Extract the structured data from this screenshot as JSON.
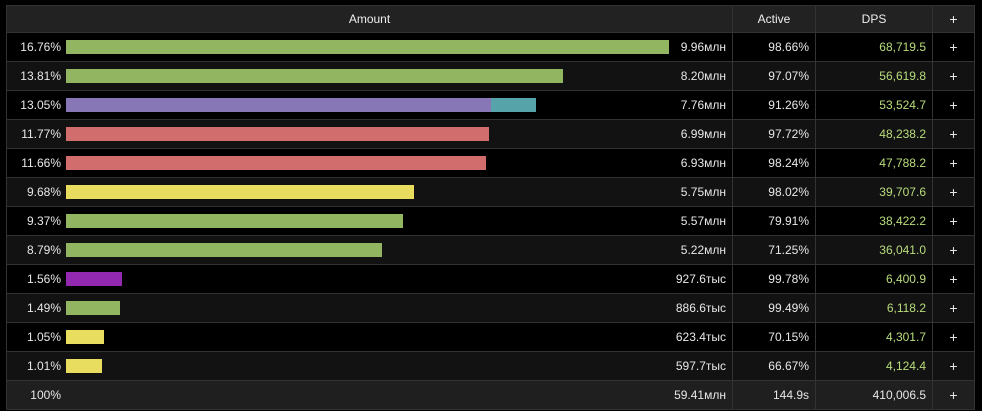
{
  "header": {
    "amount": "Amount",
    "active": "Active",
    "dps": "DPS",
    "add": "+"
  },
  "colors": {
    "green": "#92b562",
    "purple": "#8777b6",
    "teal": "#57a3aa",
    "red": "#d26d6d",
    "yellow": "#e9dd5f",
    "magenta": "#9229b0",
    "dps_text": "#b9dd7c"
  },
  "rows": [
    {
      "percent": "16.76%",
      "amount": "9.96млн",
      "active": "98.66%",
      "dps": "68,719.5",
      "add": "+",
      "bars": [
        {
          "value": 16.76,
          "color": "#92b562"
        }
      ]
    },
    {
      "percent": "13.81%",
      "amount": "8.20млн",
      "active": "97.07%",
      "dps": "56,619.8",
      "add": "+",
      "bars": [
        {
          "value": 13.81,
          "color": "#92b562"
        }
      ]
    },
    {
      "percent": "13.05%",
      "amount": "7.76млн",
      "active": "91.26%",
      "dps": "53,524.7",
      "add": "+",
      "bars": [
        {
          "value": 11.8,
          "color": "#8777b6"
        },
        {
          "value": 1.25,
          "color": "#57a3aa"
        }
      ]
    },
    {
      "percent": "11.77%",
      "amount": "6.99млн",
      "active": "97.72%",
      "dps": "48,238.2",
      "add": "+",
      "bars": [
        {
          "value": 11.77,
          "color": "#d26d6d"
        }
      ]
    },
    {
      "percent": "11.66%",
      "amount": "6.93млн",
      "active": "98.24%",
      "dps": "47,788.2",
      "add": "+",
      "bars": [
        {
          "value": 11.66,
          "color": "#d26d6d"
        }
      ]
    },
    {
      "percent": "9.68%",
      "amount": "5.75млн",
      "active": "98.02%",
      "dps": "39,707.6",
      "add": "+",
      "bars": [
        {
          "value": 9.68,
          "color": "#e9dd5f"
        }
      ]
    },
    {
      "percent": "9.37%",
      "amount": "5.57млн",
      "active": "79.91%",
      "dps": "38,422.2",
      "add": "+",
      "bars": [
        {
          "value": 9.37,
          "color": "#92b562"
        }
      ]
    },
    {
      "percent": "8.79%",
      "amount": "5.22млн",
      "active": "71.25%",
      "dps": "36,041.0",
      "add": "+",
      "bars": [
        {
          "value": 8.79,
          "color": "#92b562"
        }
      ]
    },
    {
      "percent": "1.56%",
      "amount": "927.6тыс",
      "active": "99.78%",
      "dps": "6,400.9",
      "add": "+",
      "bars": [
        {
          "value": 1.56,
          "color": "#9229b0"
        }
      ]
    },
    {
      "percent": "1.49%",
      "amount": "886.6тыс",
      "active": "99.49%",
      "dps": "6,118.2",
      "add": "+",
      "bars": [
        {
          "value": 1.49,
          "color": "#92b562"
        }
      ]
    },
    {
      "percent": "1.05%",
      "amount": "623.4тыс",
      "active": "70.15%",
      "dps": "4,301.7",
      "add": "+",
      "bars": [
        {
          "value": 1.05,
          "color": "#e9dd5f"
        }
      ]
    },
    {
      "percent": "1.01%",
      "amount": "597.7тыс",
      "active": "66.67%",
      "dps": "4,124.4",
      "add": "+",
      "bars": [
        {
          "value": 1.01,
          "color": "#e9dd5f"
        }
      ]
    }
  ],
  "total": {
    "percent": "100%",
    "amount": "59.41млн",
    "active": "144.9s",
    "dps": "410,006.5",
    "add": "+"
  }
}
